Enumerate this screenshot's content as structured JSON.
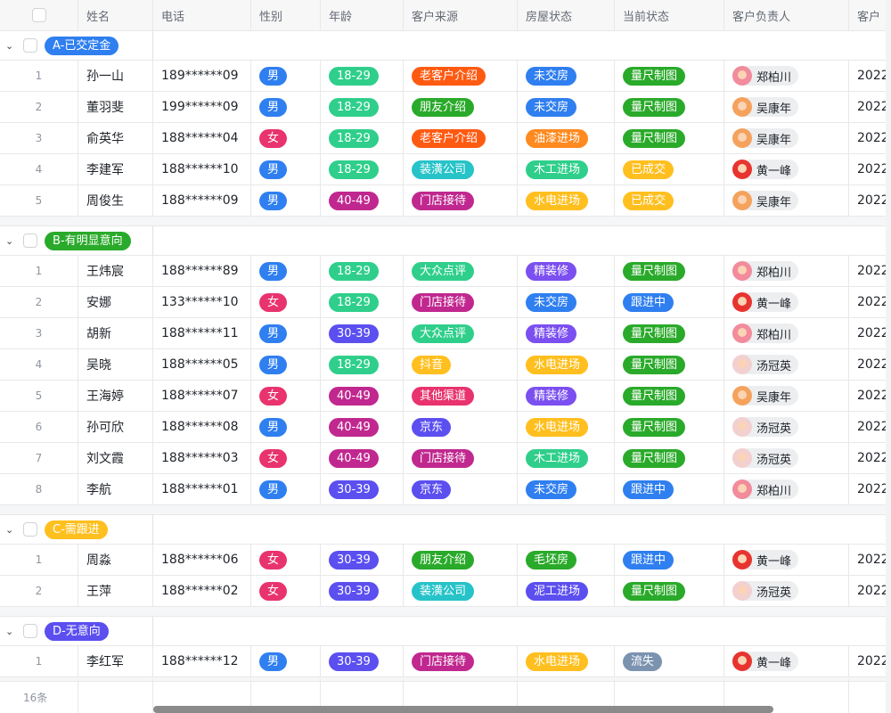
{
  "columns": [
    "",
    "姓名",
    "电话",
    "性别",
    "年龄",
    "客户来源",
    "房屋状态",
    "当前状态",
    "客户负责人",
    "客户"
  ],
  "groups": [
    {
      "label": "A-已交定金",
      "color": "#2f7ff0",
      "rows": [
        {
          "idx": "1",
          "name": "孙一山",
          "phone": "189******09",
          "gender": "男",
          "age": "18-29",
          "source": "老客户介绍",
          "house": "未交房",
          "status": "量尺制图",
          "owner": "郑柏川",
          "last": "2022"
        },
        {
          "idx": "2",
          "name": "董羽斐",
          "phone": "199******09",
          "gender": "男",
          "age": "18-29",
          "source": "朋友介绍",
          "house": "未交房",
          "status": "量尺制图",
          "owner": "吴康年",
          "last": "2022"
        },
        {
          "idx": "3",
          "name": "俞英华",
          "phone": "188******04",
          "gender": "女",
          "age": "18-29",
          "source": "老客户介绍",
          "house": "油漆进场",
          "status": "量尺制图",
          "owner": "吴康年",
          "last": "2022"
        },
        {
          "idx": "4",
          "name": "李建军",
          "phone": "188******10",
          "gender": "男",
          "age": "18-29",
          "source": "装潢公司",
          "house": "木工进场",
          "status": "已成交",
          "owner": "黄一峰",
          "last": "2022"
        },
        {
          "idx": "5",
          "name": "周俊生",
          "phone": "188******09",
          "gender": "男",
          "age": "40-49",
          "source": "门店接待",
          "house": "水电进场",
          "status": "已成交",
          "owner": "吴康年",
          "last": "2022"
        }
      ]
    },
    {
      "label": "B-有明显意向",
      "color": "#2aaa2a",
      "rows": [
        {
          "idx": "1",
          "name": "王炜宸",
          "phone": "188******89",
          "gender": "男",
          "age": "18-29",
          "source": "大众点评",
          "house": "精装修",
          "status": "量尺制图",
          "owner": "郑柏川",
          "last": "2022"
        },
        {
          "idx": "2",
          "name": "安娜",
          "phone": "133******10",
          "gender": "女",
          "age": "18-29",
          "source": "门店接待",
          "house": "未交房",
          "status": "跟进中",
          "owner": "黄一峰",
          "last": "2022"
        },
        {
          "idx": "3",
          "name": "胡新",
          "phone": "188******11",
          "gender": "男",
          "age": "30-39",
          "source": "大众点评",
          "house": "精装修",
          "status": "量尺制图",
          "owner": "郑柏川",
          "last": "2022"
        },
        {
          "idx": "4",
          "name": "吴晓",
          "phone": "188******05",
          "gender": "男",
          "age": "18-29",
          "source": "抖音",
          "house": "水电进场",
          "status": "量尺制图",
          "owner": "汤冠英",
          "last": "2022"
        },
        {
          "idx": "5",
          "name": "王海婷",
          "phone": "188******07",
          "gender": "女",
          "age": "40-49",
          "source": "其他渠道",
          "house": "精装修",
          "status": "量尺制图",
          "owner": "吴康年",
          "last": "2022"
        },
        {
          "idx": "6",
          "name": "孙可欣",
          "phone": "188******08",
          "gender": "男",
          "age": "40-49",
          "source": "京东",
          "house": "水电进场",
          "status": "量尺制图",
          "owner": "汤冠英",
          "last": "2022"
        },
        {
          "idx": "7",
          "name": "刘文霞",
          "phone": "188******03",
          "gender": "女",
          "age": "40-49",
          "source": "门店接待",
          "house": "木工进场",
          "status": "量尺制图",
          "owner": "汤冠英",
          "last": "2022"
        },
        {
          "idx": "8",
          "name": "李航",
          "phone": "188******01",
          "gender": "男",
          "age": "30-39",
          "source": "京东",
          "house": "未交房",
          "status": "跟进中",
          "owner": "郑柏川",
          "last": "2022"
        }
      ]
    },
    {
      "label": "C-需跟进",
      "color": "#ffbf1f",
      "rows": [
        {
          "idx": "1",
          "name": "周淼",
          "phone": "188******06",
          "gender": "女",
          "age": "30-39",
          "source": "朋友介绍",
          "house": "毛坯房",
          "status": "跟进中",
          "owner": "黄一峰",
          "last": "2022"
        },
        {
          "idx": "2",
          "name": "王萍",
          "phone": "188******02",
          "gender": "女",
          "age": "30-39",
          "source": "装潢公司",
          "house": "泥工进场",
          "status": "量尺制图",
          "owner": "汤冠英",
          "last": "2022"
        }
      ]
    },
    {
      "label": "D-无意向",
      "color": "#5b4ff0",
      "rows": [
        {
          "idx": "1",
          "name": "李红军",
          "phone": "188******12",
          "gender": "男",
          "age": "30-39",
          "source": "门店接待",
          "house": "水电进场",
          "status": "流失",
          "owner": "黄一峰",
          "last": "2022"
        }
      ]
    }
  ],
  "tag_colors": {
    "男": "#2f7ff0",
    "女": "#e8336e",
    "18-29": "#2fcf8b",
    "30-39": "#5b4ff0",
    "40-49": "#c0288f",
    "老客户介绍": "#ff5a12",
    "朋友介绍": "#2aaa2a",
    "装潢公司": "#26c3c8",
    "门店接待": "#c0288f",
    "大众点评": "#2fcf8b",
    "抖音": "#ffbf1f",
    "其他渠道": "#e8336e",
    "京东": "#5b4ff0",
    "未交房": "#2f7ff0",
    "油漆进场": "#ff8a1f",
    "木工进场": "#2fcf8b",
    "水电进场": "#ffbf1f",
    "精装修": "#7b4ff0",
    "毛坯房": "#2aaa2a",
    "泥工进场": "#5b4ff0",
    "量尺制图": "#2aaa2a",
    "已成交": "#ffbf1f",
    "跟进中": "#2f7ff0",
    "流失": "#7c93b0"
  },
  "owner_colors": {
    "郑柏川": "#f28b9b",
    "吴康年": "#f5a25d",
    "黄一峰": "#e8342f",
    "汤冠英": "#f3d0d0"
  },
  "footer": {
    "count": "16条"
  }
}
